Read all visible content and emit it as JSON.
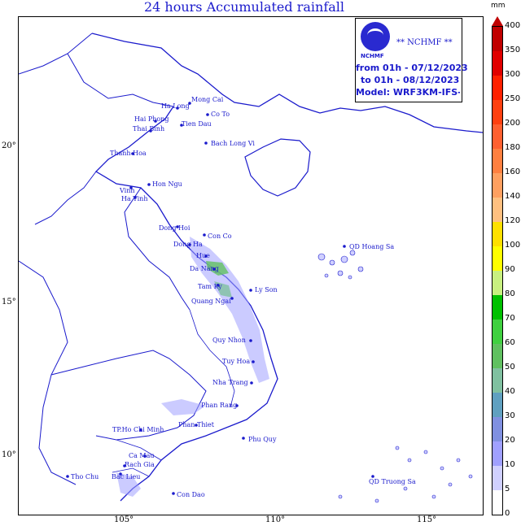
{
  "title": "24 hours Accumulated rainfall",
  "info": {
    "org_stars": "** NCHMF **",
    "org": "NCHMF",
    "from": "from 01h - 07/12/2023",
    "to": "to 01h - 08/12/2023",
    "model": "Model: WRF3KM-IFS-DA"
  },
  "axes": {
    "lon_ticks": [
      "105°",
      "110°",
      "115°"
    ],
    "lat_ticks": [
      "20°",
      "15°",
      "10°"
    ]
  },
  "colorbar": {
    "unit": "mm",
    "levels": [
      "400",
      "350",
      "300",
      "250",
      "200",
      "180",
      "160",
      "140",
      "120",
      "100",
      "90",
      "80",
      "70",
      "60",
      "50",
      "40",
      "30",
      "20",
      "10",
      "5",
      "0"
    ],
    "colors": [
      "#c00000",
      "#e00000",
      "#ff2000",
      "#ff4010",
      "#ff6030",
      "#ff8040",
      "#ffa060",
      "#ffc080",
      "#ffe000",
      "#ffff00",
      "#c8f080",
      "#00c000",
      "#40d040",
      "#60c060",
      "#80c0a0",
      "#60a0c0",
      "#8090e0",
      "#a0a0ff",
      "#d0d0ff",
      "#ffffff"
    ]
  },
  "places": [
    "Mong Cai",
    "Ha Long",
    "Co To",
    "Hai Phong",
    "Thai Binh",
    "Tien Dau",
    "Bach Long Vi",
    "Thanh Hoa",
    "Hon Ngu",
    "Vinh",
    "Ha Tinh",
    "Dong Hoi",
    "Con Co",
    "Dong Ha",
    "Hue",
    "Da Nang",
    "Tam Ky",
    "Ly Son",
    "Quang Ngai",
    "Quy Nhon",
    "Tuy Hoa",
    "Nha Trang",
    "Phan Rang",
    "Phan Thiet",
    "TP.Ho Chi Minh",
    "Phu Quy",
    "Ca Mau",
    "Tho Chu",
    "Bac Lieu",
    "Rach Gia",
    "Con Dao",
    "QD Hoang Sa",
    "QD Truong Sa"
  ]
}
